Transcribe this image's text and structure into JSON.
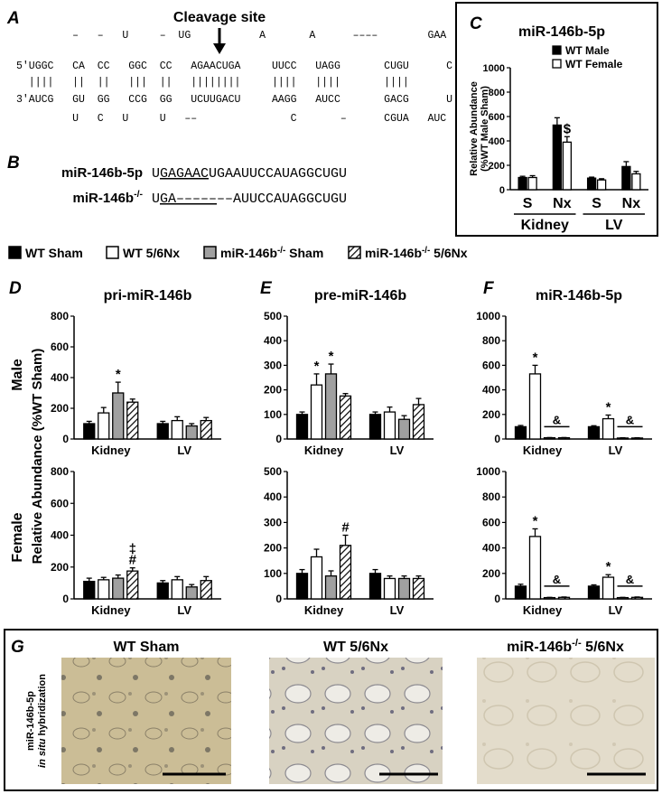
{
  "panel_a": {
    "label": "A",
    "annotation": "Cleavage site",
    "rows": [
      "         –   –   U     –  UG           A       A      ––––        GAA",
      "5'UGGC   CA  CC   GGC  CC   AGAACUGA     UUCC   UAGG       CUGU      C",
      "  ||||   ||  ||   |||  ||   ||||||||     ||||   ||||       ||||",
      "3'AUCG   GU  GG   CCG  GG   UCUUGACU     AAGG   AUCC       GACG      U",
      "         U   C   U     U   ––               C       –      CGUA   AUC"
    ]
  },
  "panel_b": {
    "label": "B",
    "rows": [
      {
        "name": [
          {
            "text": "miR-146b-5p"
          }
        ],
        "sequence": [
          {
            "text": "U"
          },
          {
            "text": "GAGAAC",
            "underline": true
          },
          {
            "text": "UGAAUUCCAUAGGCUGU"
          }
        ]
      },
      {
        "name": [
          {
            "text": "miR-146b"
          },
          {
            "text": "-/-",
            "sup": true
          }
        ],
        "sequence": [
          {
            "text": "U"
          },
          {
            "text": "GA–––––",
            "underline": true
          },
          {
            "text": "––AUUCCAUAGGCUGU"
          }
        ]
      }
    ]
  },
  "shared": {
    "legend": [
      {
        "name": [
          {
            "text": "WT Sham"
          }
        ],
        "color": "#000000"
      },
      {
        "name": [
          {
            "text": "WT 5/6Nx"
          }
        ],
        "color": "#ffffff"
      },
      {
        "name": [
          {
            "text": "miR-146b"
          },
          {
            "text": "-/-",
            "sup": true
          },
          {
            "text": " Sham"
          }
        ],
        "color": "#a0a0a0"
      },
      {
        "name": [
          {
            "text": "miR-146b"
          },
          {
            "text": "-/-",
            "sup": true
          },
          {
            "text": " 5/6Nx"
          }
        ],
        "color": "#ffffff",
        "hatch": true
      }
    ],
    "row_labels": [
      "Male",
      "Female"
    ],
    "y_label": "Relative Abundance (%WT Sham)"
  },
  "chart_data": [
    {
      "type": "bar",
      "panel": "C",
      "title": "miR-146b-5p",
      "y_label": [
        "Relative Abundance",
        "(%WT Male Sham)"
      ],
      "categories": [
        "S",
        "Nx",
        "S",
        "Nx"
      ],
      "groups": [
        "Kidney",
        "LV"
      ],
      "ylim": [
        0,
        1000
      ],
      "yticks": [
        0,
        200,
        400,
        600,
        800,
        1000
      ],
      "series": [
        {
          "name": "WT Male",
          "color": "#000000",
          "values": [
            100,
            530,
            95,
            190
          ],
          "errors": [
            10,
            60,
            8,
            40
          ],
          "annotations": [
            null,
            null,
            null,
            null
          ]
        },
        {
          "name": "WT Female",
          "color": "#ffffff",
          "values": [
            100,
            390,
            80,
            130
          ],
          "errors": [
            15,
            45,
            10,
            20
          ],
          "annotations": [
            null,
            [
              "$"
            ],
            null,
            null
          ]
        }
      ]
    },
    {
      "type": "bar",
      "panel": "D",
      "title": "pri-miR-146b",
      "categories": [
        "Kidney",
        "LV"
      ],
      "ylim": [
        0,
        800
      ],
      "yticks": [
        0,
        200,
        400,
        600,
        800
      ],
      "series": [
        {
          "values": [
            100,
            100
          ],
          "errors": [
            15,
            15
          ],
          "annotations": [
            null,
            null
          ]
        },
        {
          "values": [
            170,
            120
          ],
          "errors": [
            35,
            25
          ],
          "annotations": [
            null,
            null
          ]
        },
        {
          "values": [
            300,
            85
          ],
          "errors": [
            70,
            15
          ],
          "annotations": [
            [
              "*"
            ],
            null
          ]
        },
        {
          "values": [
            240,
            120
          ],
          "errors": [
            20,
            20
          ],
          "annotations": [
            null,
            null
          ]
        }
      ]
    },
    {
      "type": "bar",
      "categories": [
        "Kidney",
        "LV"
      ],
      "ylim": [
        0,
        800
      ],
      "yticks": [
        0,
        200,
        400,
        600,
        800
      ],
      "series": [
        {
          "values": [
            110,
            100
          ],
          "errors": [
            20,
            15
          ],
          "annotations": [
            null,
            null
          ]
        },
        {
          "values": [
            120,
            120
          ],
          "errors": [
            15,
            20
          ],
          "annotations": [
            null,
            null
          ]
        },
        {
          "values": [
            130,
            75
          ],
          "errors": [
            20,
            15
          ],
          "annotations": [
            null,
            null
          ]
        },
        {
          "values": [
            175,
            115
          ],
          "errors": [
            20,
            25
          ],
          "annotations": [
            [
              "‡",
              "#"
            ],
            null
          ]
        }
      ]
    },
    {
      "type": "bar",
      "panel": "E",
      "title": "pre-miR-146b",
      "categories": [
        "Kidney",
        "LV"
      ],
      "ylim": [
        0,
        500
      ],
      "yticks": [
        0,
        100,
        200,
        300,
        400,
        500
      ],
      "series": [
        {
          "values": [
            100,
            100
          ],
          "errors": [
            10,
            10
          ],
          "annotations": [
            null,
            null
          ]
        },
        {
          "values": [
            220,
            110
          ],
          "errors": [
            45,
            20
          ],
          "annotations": [
            [
              "*"
            ],
            null
          ]
        },
        {
          "values": [
            265,
            80
          ],
          "errors": [
            40,
            15
          ],
          "annotations": [
            [
              "*"
            ],
            null
          ]
        },
        {
          "values": [
            175,
            140
          ],
          "errors": [
            10,
            25
          ],
          "annotations": [
            null,
            null
          ]
        }
      ]
    },
    {
      "type": "bar",
      "categories": [
        "Kidney",
        "LV"
      ],
      "ylim": [
        0,
        500
      ],
      "yticks": [
        0,
        100,
        200,
        300,
        400,
        500
      ],
      "series": [
        {
          "values": [
            100,
            100
          ],
          "errors": [
            15,
            15
          ],
          "annotations": [
            null,
            null
          ]
        },
        {
          "values": [
            165,
            80
          ],
          "errors": [
            30,
            10
          ],
          "annotations": [
            null,
            null
          ]
        },
        {
          "values": [
            90,
            80
          ],
          "errors": [
            20,
            10
          ],
          "annotations": [
            null,
            null
          ]
        },
        {
          "values": [
            210,
            80
          ],
          "errors": [
            40,
            10
          ],
          "annotations": [
            [
              "#"
            ],
            null
          ]
        }
      ]
    },
    {
      "type": "bar",
      "panel": "F",
      "title": "miR-146b-5p",
      "categories": [
        "Kidney",
        "LV"
      ],
      "ylim": [
        0,
        1000
      ],
      "yticks": [
        0,
        200,
        400,
        600,
        800,
        1000
      ],
      "knockout_annotations": [
        "&",
        "&"
      ],
      "series": [
        {
          "values": [
            100,
            100
          ],
          "errors": [
            10,
            8
          ],
          "annotations": [
            null,
            null
          ]
        },
        {
          "values": [
            530,
            165
          ],
          "errors": [
            70,
            30
          ],
          "annotations": [
            [
              "*"
            ],
            [
              "*"
            ]
          ]
        },
        {
          "values": [
            10,
            8
          ],
          "errors": [
            2,
            2
          ],
          "annotations": [
            null,
            null
          ]
        },
        {
          "values": [
            10,
            8
          ],
          "errors": [
            2,
            2
          ],
          "annotations": [
            null,
            null
          ]
        }
      ]
    },
    {
      "type": "bar",
      "categories": [
        "Kidney",
        "LV"
      ],
      "ylim": [
        0,
        1000
      ],
      "yticks": [
        0,
        200,
        400,
        600,
        800,
        1000
      ],
      "knockout_annotations": [
        "&",
        "&"
      ],
      "series": [
        {
          "values": [
            100,
            100
          ],
          "errors": [
            15,
            10
          ],
          "annotations": [
            null,
            null
          ]
        },
        {
          "values": [
            490,
            170
          ],
          "errors": [
            60,
            20
          ],
          "annotations": [
            [
              "*"
            ],
            [
              "*"
            ]
          ]
        },
        {
          "values": [
            10,
            10
          ],
          "errors": [
            2,
            2
          ],
          "annotations": [
            null,
            null
          ]
        },
        {
          "values": [
            12,
            12
          ],
          "errors": [
            3,
            3
          ],
          "annotations": [
            null,
            null
          ]
        }
      ]
    }
  ],
  "panel_g": {
    "label": "G",
    "side_label": [
      [
        {
          "text": "miR-146b-5p"
        }
      ],
      [
        {
          "text": "in situ",
          "italic": true
        },
        {
          "text": " hybridization"
        }
      ]
    ],
    "images": [
      {
        "title": [
          {
            "text": "WT Sham"
          }
        ]
      },
      {
        "title": [
          {
            "text": "WT 5/6Nx"
          }
        ]
      },
      {
        "title": [
          {
            "text": "miR-146b"
          },
          {
            "text": "-/-",
            "sup": true
          },
          {
            "text": " 5/6Nx"
          }
        ]
      }
    ]
  }
}
